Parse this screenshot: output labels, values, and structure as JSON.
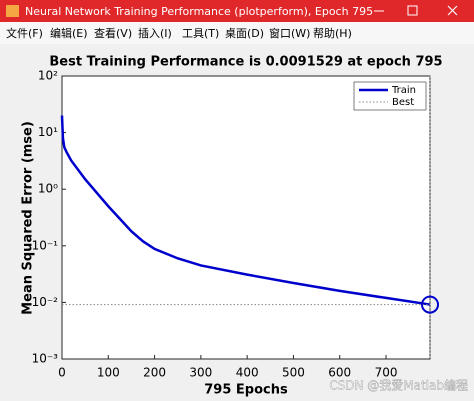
{
  "window": {
    "title": "Neural Network Training Performance (plotperform), Epoch 795"
  },
  "menu": [
    "文件(F)",
    "编辑(E)",
    "查看(V)",
    "插入(I)",
    "工具(T)",
    "桌面(D)",
    "窗口(W)",
    "帮助(H)"
  ],
  "chart_data": {
    "type": "line",
    "title": "Best Training Performance is 0.0091529 at epoch 795",
    "x_label": "795 Epochs",
    "y_label": "Mean Squared Error  (mse)",
    "x": [
      0,
      2,
      5,
      10,
      20,
      50,
      100,
      150,
      175,
      200,
      250,
      300,
      400,
      500,
      600,
      700,
      795
    ],
    "series": [
      {
        "name": "Train",
        "color": "#0000cc",
        "values": [
          20,
          8,
          5.5,
          4.5,
          3.2,
          1.5,
          0.5,
          0.18,
          0.12,
          0.088,
          0.06,
          0.045,
          0.031,
          0.022,
          0.016,
          0.012,
          0.0091529
        ]
      },
      {
        "name": "Best",
        "color": "#888888",
        "x": [
          0,
          795
        ],
        "values": [
          0.0091529,
          0.0091529
        ]
      }
    ],
    "xlim": [
      0,
      795
    ],
    "ylim": [
      0.001,
      100
    ],
    "log_y": true,
    "xticks": [
      0,
      100,
      200,
      300,
      400,
      500,
      600,
      700
    ],
    "yticks": [
      {
        "value": 0.001,
        "label": "10⁻³"
      },
      {
        "value": 0.01,
        "label": "10⁻²"
      },
      {
        "value": 0.1,
        "label": "10⁻¹"
      },
      {
        "value": 1,
        "label": "10⁰"
      },
      {
        "value": 10,
        "label": "10¹"
      },
      {
        "value": 100,
        "label": "10²"
      }
    ],
    "legend": "northeast"
  },
  "watermark": "CSDN @我爱Matlab编程"
}
